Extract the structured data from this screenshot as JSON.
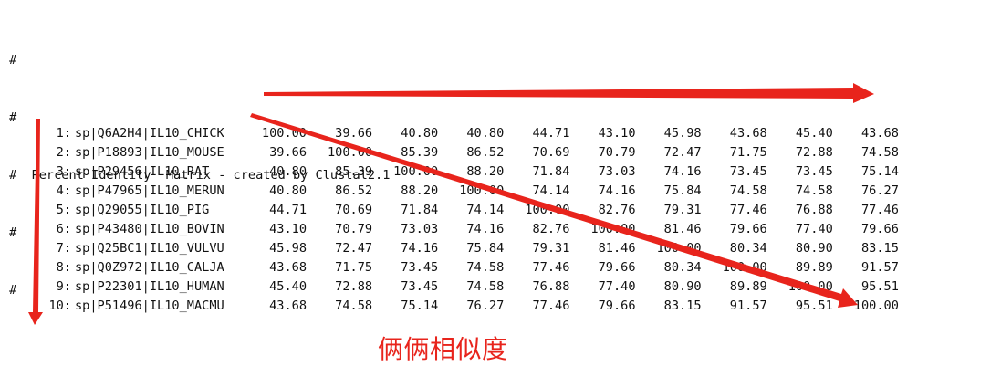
{
  "header_lines": [
    "#",
    "#",
    "#  Percent Identity  Matrix - created by Clustal2.1",
    "#",
    "#"
  ],
  "matrix": {
    "rows": [
      {
        "num": "1:",
        "label": "sp|Q6A2H4|IL10_CHICK",
        "values": [
          "100.00",
          "39.66",
          "40.80",
          "40.80",
          "44.71",
          "43.10",
          "45.98",
          "43.68",
          "45.40",
          "43.68"
        ]
      },
      {
        "num": "2:",
        "label": "sp|P18893|IL10_MOUSE",
        "values": [
          "39.66",
          "100.00",
          "85.39",
          "86.52",
          "70.69",
          "70.79",
          "72.47",
          "71.75",
          "72.88",
          "74.58"
        ]
      },
      {
        "num": "3:",
        "label": "sp|P29456|IL10_RAT",
        "values": [
          "40.80",
          "85.39",
          "100.00",
          "88.20",
          "71.84",
          "73.03",
          "74.16",
          "73.45",
          "73.45",
          "75.14"
        ]
      },
      {
        "num": "4:",
        "label": "sp|P47965|IL10_MERUN",
        "values": [
          "40.80",
          "86.52",
          "88.20",
          "100.00",
          "74.14",
          "74.16",
          "75.84",
          "74.58",
          "74.58",
          "76.27"
        ]
      },
      {
        "num": "5:",
        "label": "sp|Q29055|IL10_PIG",
        "values": [
          "44.71",
          "70.69",
          "71.84",
          "74.14",
          "100.00",
          "82.76",
          "79.31",
          "77.46",
          "76.88",
          "77.46"
        ]
      },
      {
        "num": "6:",
        "label": "sp|P43480|IL10_BOVIN",
        "values": [
          "43.10",
          "70.79",
          "73.03",
          "74.16",
          "82.76",
          "100.00",
          "81.46",
          "79.66",
          "77.40",
          "79.66"
        ]
      },
      {
        "num": "7:",
        "label": "sp|Q25BC1|IL10_VULVU",
        "values": [
          "45.98",
          "72.47",
          "74.16",
          "75.84",
          "79.31",
          "81.46",
          "100.00",
          "80.34",
          "80.90",
          "83.15"
        ]
      },
      {
        "num": "8:",
        "label": "sp|Q0Z972|IL10_CALJA",
        "values": [
          "43.68",
          "71.75",
          "73.45",
          "74.58",
          "77.46",
          "79.66",
          "80.34",
          "100.00",
          "89.89",
          "91.57"
        ]
      },
      {
        "num": "9:",
        "label": "sp|P22301|IL10_HUMAN",
        "values": [
          "45.40",
          "72.88",
          "73.45",
          "74.58",
          "76.88",
          "77.40",
          "80.90",
          "89.89",
          "100.00",
          "95.51"
        ]
      },
      {
        "num": "10:",
        "label": "sp|P51496|IL10_MACMU",
        "values": [
          "43.68",
          "74.58",
          "75.14",
          "76.27",
          "77.46",
          "79.66",
          "83.15",
          "91.57",
          "95.51",
          "100.00"
        ]
      }
    ]
  },
  "annotation": {
    "caption": "俩俩相似度",
    "arrow_color": "#e8241c",
    "arrows": [
      "horizontal-right",
      "vertical-down",
      "diagonal"
    ]
  }
}
